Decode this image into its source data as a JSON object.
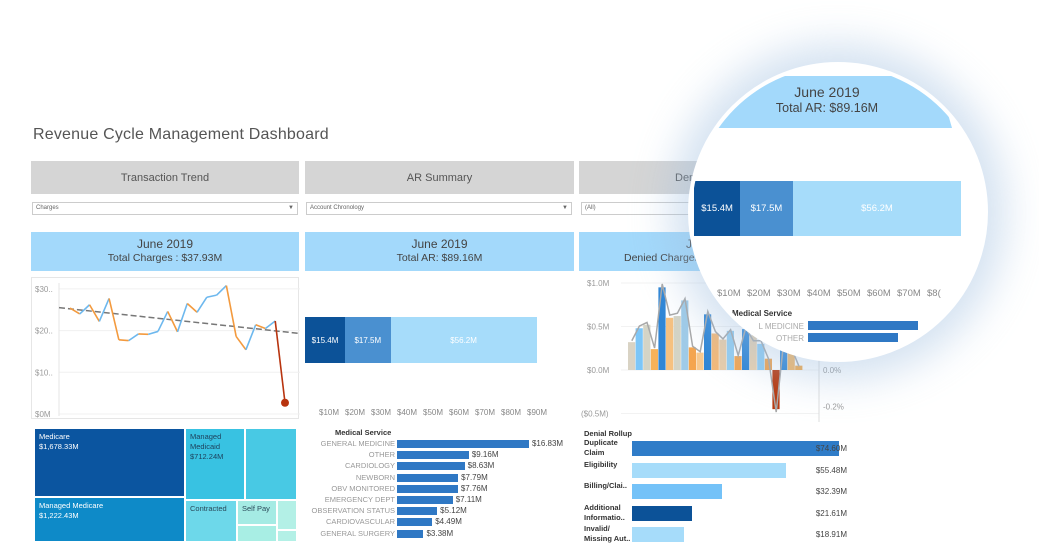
{
  "title": "Revenue Cycle Management Dashboard",
  "panels": [
    {
      "header": "Transaction Trend",
      "dropdown": "Charges",
      "period": "June 2019",
      "total": "Total Charges : $37.93M"
    },
    {
      "header": "AR Summary",
      "dropdown": "Account Chronology",
      "period": "June 2019",
      "total": "Total AR: $89.16M"
    },
    {
      "header": "Denials",
      "dropdown": "(All)",
      "period": "June 2019",
      "total": "Denied Charges"
    }
  ],
  "trend": {
    "yticks": [
      "$30..",
      "$20..",
      "$10..",
      "$0M"
    ],
    "values": [
      25.4,
      24.0,
      26.2,
      22.2,
      27.7,
      17.8,
      17.6,
      19.2,
      19.1,
      19.8,
      24.6,
      19.7,
      26.5,
      24.4,
      28.0,
      28.5,
      30.8,
      18.6,
      15.4,
      21.4,
      20.5,
      22.3,
      2.7
    ],
    "trend_start": 25.5,
    "trend_end": 19.3
  },
  "payers": [
    {
      "name": "Medicare",
      "value": "$1,678.33M"
    },
    {
      "name": "Managed Medicare",
      "value": "$1,222.43M"
    },
    {
      "name": "Managed Medicaid",
      "value": "$712.24M"
    },
    {
      "name": "Contracted",
      "value": ""
    },
    {
      "name": "Self Pay",
      "value": ""
    }
  ],
  "ar": {
    "segments": [
      {
        "label": "$15.4M",
        "value": 15.4,
        "color": "#0c5298"
      },
      {
        "label": "$17.5M",
        "value": 17.5,
        "color": "#4a90d0"
      },
      {
        "label": "$56.2M",
        "value": 56.2,
        "color": "#a6dcfa"
      }
    ],
    "axis": [
      "$10M",
      "$20M",
      "$30M",
      "$40M",
      "$50M",
      "$60M",
      "$70M",
      "$80M",
      "$90M"
    ]
  },
  "medical_service": {
    "title": "Medical Service",
    "items": [
      {
        "name": "GENERAL MEDICINE",
        "value": 16.83,
        "label": "$16.83M"
      },
      {
        "name": "OTHER",
        "value": 9.16,
        "label": "$9.16M"
      },
      {
        "name": "CARDIOLOGY",
        "value": 8.63,
        "label": "$8.63M"
      },
      {
        "name": "NEWBORN",
        "value": 7.79,
        "label": "$7.79M"
      },
      {
        "name": "OBV MONITORED",
        "value": 7.76,
        "label": "$7.76M"
      },
      {
        "name": "EMERGENCY DEPT",
        "value": 7.11,
        "label": "$7.11M"
      },
      {
        "name": "OBSERVATION STATUS",
        "value": 5.12,
        "label": "$5.12M"
      },
      {
        "name": "CARDIOVASCULAR",
        "value": 4.49,
        "label": "$4.49M"
      },
      {
        "name": "GENERAL SURGERY",
        "value": 3.38,
        "label": "$3.38M"
      }
    ]
  },
  "denied": {
    "yticks": [
      "$1.0M",
      "$0.5M",
      "$0.0M",
      "($0.5M)"
    ],
    "y2ticks": [
      "0.0%",
      "-0.2%"
    ],
    "bars": [
      0.32,
      0.48,
      0.52,
      0.24,
      0.95,
      0.6,
      0.62,
      0.8,
      0.26,
      0.2,
      0.64,
      0.42,
      0.35,
      0.45,
      0.16,
      0.47,
      0.4,
      0.3,
      0.13,
      -0.45,
      0.27,
      0.24,
      0.05
    ],
    "colors": [
      "#d9d3c4",
      "#7cc6f8",
      "#d4d4c6",
      "#f7b25a",
      "#2f86d6",
      "#f6c180",
      "#d4d4c6",
      "#9fcbe8",
      "#f5a54e",
      "#f8c98e",
      "#2f86d6",
      "#f3b97a",
      "#e6ccaa",
      "#94cdf0",
      "#f2a552",
      "#2f86d6",
      "#e7d0b0",
      "#8fcbf2",
      "#f0a24e",
      "#b83a10",
      "#2f86d6",
      "#f5b562",
      "#f3a848"
    ],
    "line": [
      0.16,
      0.24,
      0.26,
      0.12,
      0.47,
      0.3,
      0.31,
      0.39,
      0.13,
      0.1,
      0.32,
      0.21,
      0.17,
      0.22,
      0.08,
      0.23,
      0.16,
      0.16,
      0.06,
      -0.23,
      0.16,
      0.12,
      0.02
    ]
  },
  "denial_rollup": {
    "title": "Denial Rollup",
    "items": [
      {
        "name": "Duplicate Claim",
        "value": 74.6,
        "label": "$74.60M",
        "color": "#2f7cc8"
      },
      {
        "name": "Eligibility",
        "value": 55.48,
        "label": "$55.48M",
        "color": "#a6dcfa"
      },
      {
        "name": "Billing/Clai..",
        "value": 32.39,
        "label": "$32.39M",
        "color": "#74c2f8"
      },
      {
        "name": "Additional Informatio..",
        "value": 21.61,
        "label": "$21.61M",
        "color": "#0c5298"
      },
      {
        "name": "Invalid/ Missing Aut..",
        "value": 18.91,
        "label": "$18.91M",
        "color": "#a6dcfa"
      }
    ]
  },
  "magnifier": {
    "period": "June 2019",
    "total": "Total AR: $89.16M",
    "axis": [
      "$10M",
      "$20M",
      "$30M",
      "$40M",
      "$50M",
      "$60M",
      "$70M",
      "$8("
    ],
    "ms_title": "Medical Service",
    "ms_items": [
      "L MEDICINE",
      "OTHER"
    ]
  }
}
